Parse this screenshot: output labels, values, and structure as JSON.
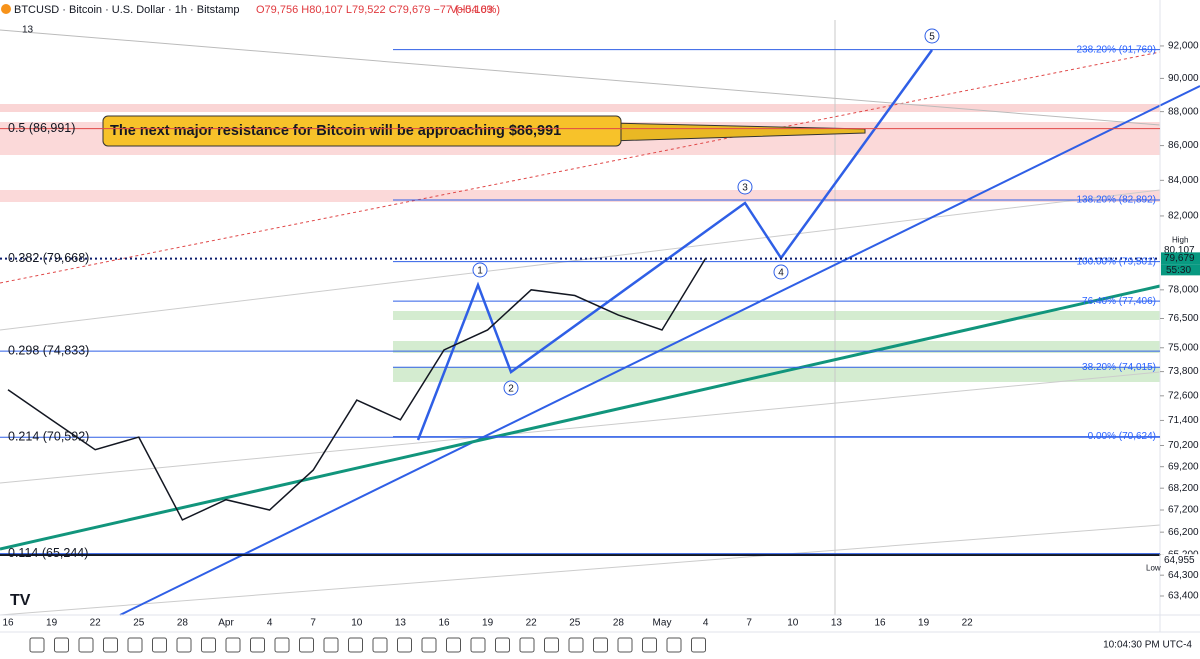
{
  "header": {
    "symbol": "BTCUSD · Bitcoin · U.S. Dollar · 1h · Bitstamp",
    "ohlc": "O79,756 H80,107 L79,522 C79,679 −77 (−0.10%)",
    "volume": "Vol54.63",
    "indicators": "13"
  },
  "chart_data": {
    "type": "line",
    "categories": [
      "16",
      "19",
      "22",
      "25",
      "28",
      "Apr",
      "4",
      "7",
      "10",
      "13",
      "16",
      "19",
      "22",
      "25",
      "28",
      "May",
      "4",
      "7",
      "10",
      "13",
      "16",
      "19",
      "22"
    ],
    "values": [
      72900,
      71430,
      70000,
      70600,
      66750,
      67670,
      67200,
      69040,
      72390,
      71430,
      74890,
      75910,
      78000,
      77700,
      76680,
      75910,
      79679,
      null,
      null,
      null,
      null,
      null,
      null
    ],
    "color": "#131722",
    "log_scale": true,
    "grid": false,
    "ylim": [
      62590,
      93630
    ],
    "yticks": [
      {
        "value": 92000,
        "label": "92,000"
      },
      {
        "value": 90000,
        "label": "90,000"
      },
      {
        "value": 88000,
        "label": "88,000"
      },
      {
        "value": 86000,
        "label": "86,000"
      },
      {
        "value": 84000,
        "label": "84,000"
      },
      {
        "value": 82000,
        "label": "82,000"
      },
      {
        "value": 78000,
        "label": "78,000"
      },
      {
        "value": 76500,
        "label": "76,500"
      },
      {
        "value": 75000,
        "label": "75,000"
      },
      {
        "value": 73800,
        "label": "73,800"
      },
      {
        "value": 72600,
        "label": "72,600"
      },
      {
        "value": 71400,
        "label": "71,400"
      },
      {
        "value": 70200,
        "label": "70,200"
      },
      {
        "value": 69200,
        "label": "69,200"
      },
      {
        "value": 68200,
        "label": "68,200"
      },
      {
        "value": 67200,
        "label": "67,200"
      },
      {
        "value": 66200,
        "label": "66,200"
      },
      {
        "value": 65200,
        "label": "65,200"
      },
      {
        "value": 64300,
        "label": "64,300"
      },
      {
        "value": 63400,
        "label": "63,400"
      }
    ],
    "annotation": "The next major resistance for Bitcoin will be approaching $86,991",
    "fib_left": [
      {
        "value": 86991,
        "label": "0.5 (86,991)"
      },
      {
        "value": 79668,
        "label": "0.382 (79,668)"
      },
      {
        "value": 74833,
        "label": "0.298 (74,833)"
      },
      {
        "value": 70592,
        "label": "0.214 (70,592)"
      },
      {
        "value": 65244,
        "label": "0.114 (65,244)"
      }
    ],
    "fib_right": [
      {
        "value": 91769,
        "label": "238.20% (91,769)"
      },
      {
        "value": 82892,
        "label": "138.20% (82,892)"
      },
      {
        "value": 79501,
        "label": "100.00% (79,501)"
      },
      {
        "value": 77406,
        "label": "76.40% (77,406)"
      },
      {
        "value": 74015,
        "label": "38.20% (74,015)"
      },
      {
        "value": 70624,
        "label": "0.00% (70,624)"
      }
    ],
    "waves": [
      "1",
      "2",
      "3",
      "4",
      "5"
    ],
    "high": {
      "tag": "High",
      "value": 80107,
      "label": "80,107"
    },
    "low": {
      "tag": "Low",
      "value": 64955,
      "label": "64,955"
    },
    "last": {
      "value": 79679,
      "label": "79,679",
      "countdown": "55:30"
    }
  },
  "footer": {
    "time": "10:04:30 PM UTC-4"
  }
}
